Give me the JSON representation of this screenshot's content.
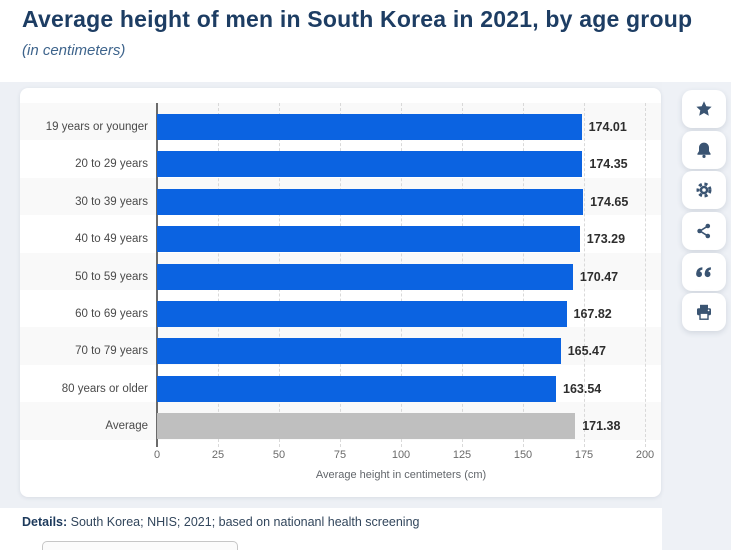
{
  "header": {
    "title": "Average height of men in South Korea in 2021, by age group",
    "subtitle": "(in centimeters)"
  },
  "chart_data": {
    "type": "bar",
    "orientation": "horizontal",
    "title": "Average height of men in South Korea in 2021, by age group",
    "categories": [
      "19 years or younger",
      "20 to 29 years",
      "30 to 39 years",
      "40 to 49 years",
      "50 to 59 years",
      "60 to 69 years",
      "70 to 79 years",
      "80 years or older",
      "Average"
    ],
    "values": [
      174.01,
      174.35,
      174.65,
      173.29,
      170.47,
      167.82,
      165.47,
      163.54,
      171.38
    ],
    "value_labels": [
      "174.01",
      "174.35",
      "174.65",
      "173.29",
      "170.47",
      "167.82",
      "165.47",
      "163.54",
      "171.38"
    ],
    "xlabel": "Average height in centimeters (cm)",
    "xlim": [
      0,
      200
    ],
    "xticks": [
      0,
      25,
      50,
      75,
      100,
      125,
      150,
      175,
      200
    ],
    "grid": "vertical-dashed",
    "legend": "none",
    "bar_color": "#0b63e1",
    "average_category": "Average",
    "average_bar_color": "#bfbfbf"
  },
  "toolbar": {
    "buttons": [
      "favorite",
      "notifications",
      "settings",
      "share",
      "cite",
      "print"
    ]
  },
  "footer": {
    "details_label": "Details:",
    "details_text": " South Korea; NHIS; 2021; based on nationanl health screening"
  }
}
